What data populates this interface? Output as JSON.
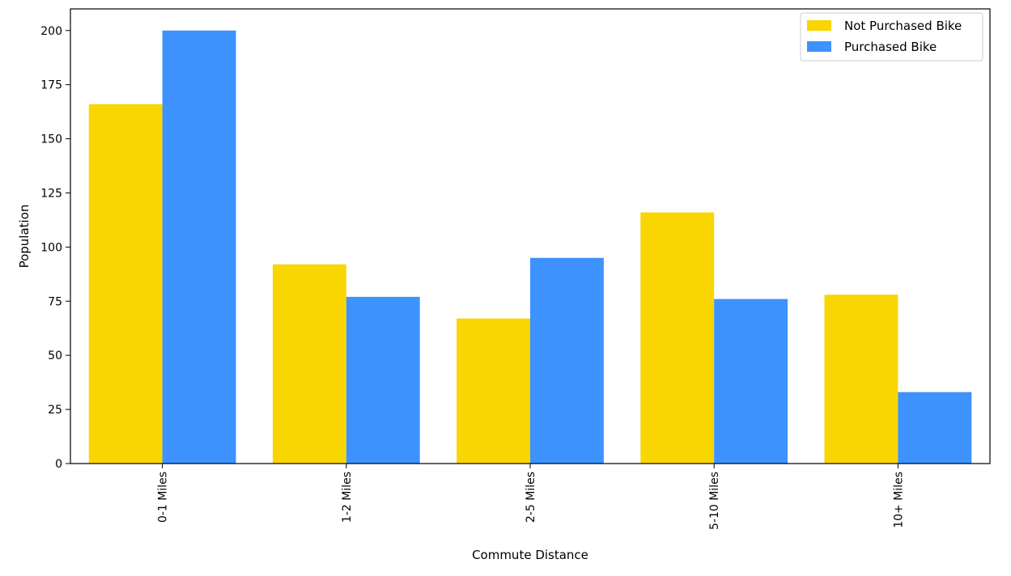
{
  "chart_data": {
    "type": "bar",
    "title": "",
    "xlabel": "Commute Distance",
    "ylabel": "Population",
    "categories": [
      "0-1 Miles",
      "1-2 Miles",
      "2-5 Miles",
      "5-10 Miles",
      "10+ Miles"
    ],
    "series": [
      {
        "name": "Not Purchased Bike",
        "color": "#f9d602",
        "values": [
          166,
          92,
          67,
          116,
          78
        ]
      },
      {
        "name": "Purchased Bike",
        "color": "#3d92fd",
        "values": [
          200,
          77,
          95,
          76,
          33
        ]
      }
    ],
    "ylim": [
      0,
      210
    ],
    "yticks": [
      0,
      25,
      50,
      75,
      100,
      125,
      150,
      175,
      200
    ],
    "grid": false,
    "legend_position": "top-right",
    "xtick_rotation": "vertical"
  }
}
